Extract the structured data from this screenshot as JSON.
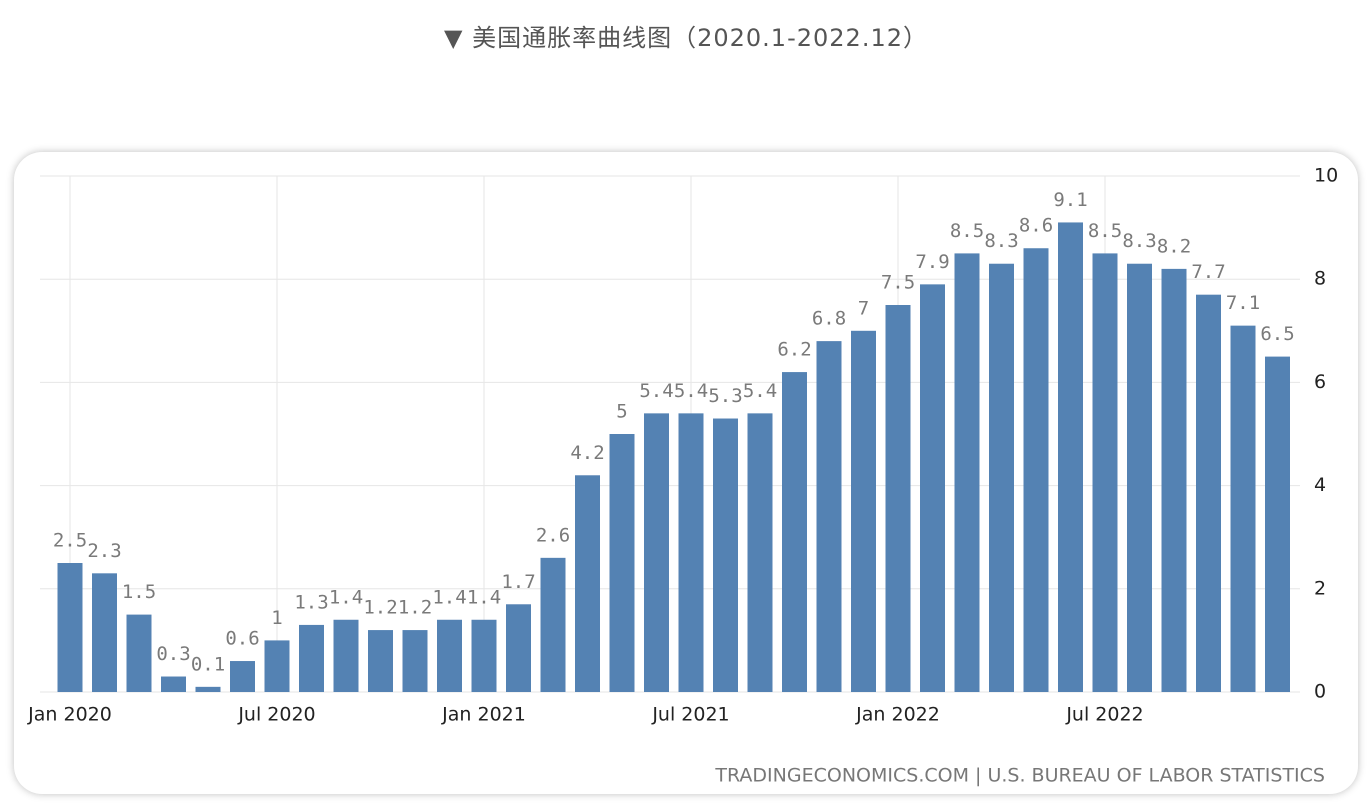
{
  "page_title": "▼ 美国通胀率曲线图（2020.1-2022.12）",
  "chart_data": {
    "type": "bar",
    "categories": [
      "Jan 2020",
      null,
      null,
      null,
      null,
      null,
      "Jul 2020",
      null,
      null,
      null,
      null,
      null,
      "Jan 2021",
      null,
      null,
      null,
      null,
      null,
      "Jul 2021",
      null,
      null,
      null,
      null,
      null,
      "Jan 2022",
      null,
      null,
      null,
      null,
      null,
      "Jul 2022",
      null,
      null,
      null,
      null,
      null
    ],
    "values": [
      2.5,
      2.3,
      1.5,
      0.3,
      0.1,
      0.6,
      1,
      1.3,
      1.4,
      1.2,
      1.2,
      1.4,
      1.4,
      1.7,
      2.6,
      4.2,
      5,
      5.4,
      5.4,
      5.3,
      5.4,
      6.2,
      6.8,
      7,
      7.5,
      7.9,
      8.5,
      8.3,
      8.6,
      9.1,
      8.5,
      8.3,
      8.2,
      7.7,
      7.1,
      6.5
    ],
    "color": "#5482b3",
    "ylim": [
      0,
      10
    ],
    "yticks": [
      0,
      2,
      4,
      6,
      8,
      10
    ],
    "grid": true,
    "source": "TRADINGECONOMICS.COM | U.S. BUREAU OF LABOR STATISTICS"
  }
}
